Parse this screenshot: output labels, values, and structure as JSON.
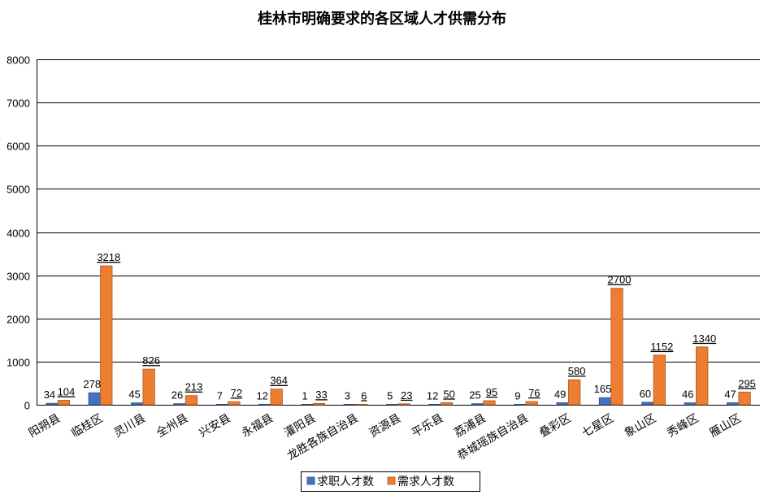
{
  "chart_data": {
    "type": "bar",
    "title": "桂林市明确要求的各区域人才供需分布",
    "xlabel": "",
    "ylabel": "",
    "categories": [
      "阳朔县",
      "临桂区",
      "灵川县",
      "全州县",
      "兴安县",
      "永福县",
      "灌阳县",
      "龙胜各族自治县",
      "资源县",
      "平乐县",
      "荔浦县",
      "恭城瑶族自治县",
      "叠彩区",
      "七星区",
      "象山区",
      "秀峰区",
      "雁山区"
    ],
    "series": [
      {
        "name": "求职人才数",
        "color": "#4472C4",
        "values": [
          34,
          278,
          45,
          26,
          7,
          12,
          1,
          3,
          5,
          12,
          25,
          9,
          49,
          165,
          60,
          46,
          47
        ]
      },
      {
        "name": "需求人才数",
        "color": "#ED7D31",
        "values": [
          104,
          3218,
          826,
          213,
          72,
          364,
          33,
          6,
          23,
          50,
          95,
          76,
          580,
          2700,
          1152,
          1340,
          295
        ]
      }
    ],
    "ylim": [
      0,
      8000
    ],
    "yticks": [
      0,
      1000,
      2000,
      3000,
      4000,
      5000,
      6000,
      7000,
      8000
    ],
    "grid": true,
    "legend": "bottom"
  }
}
